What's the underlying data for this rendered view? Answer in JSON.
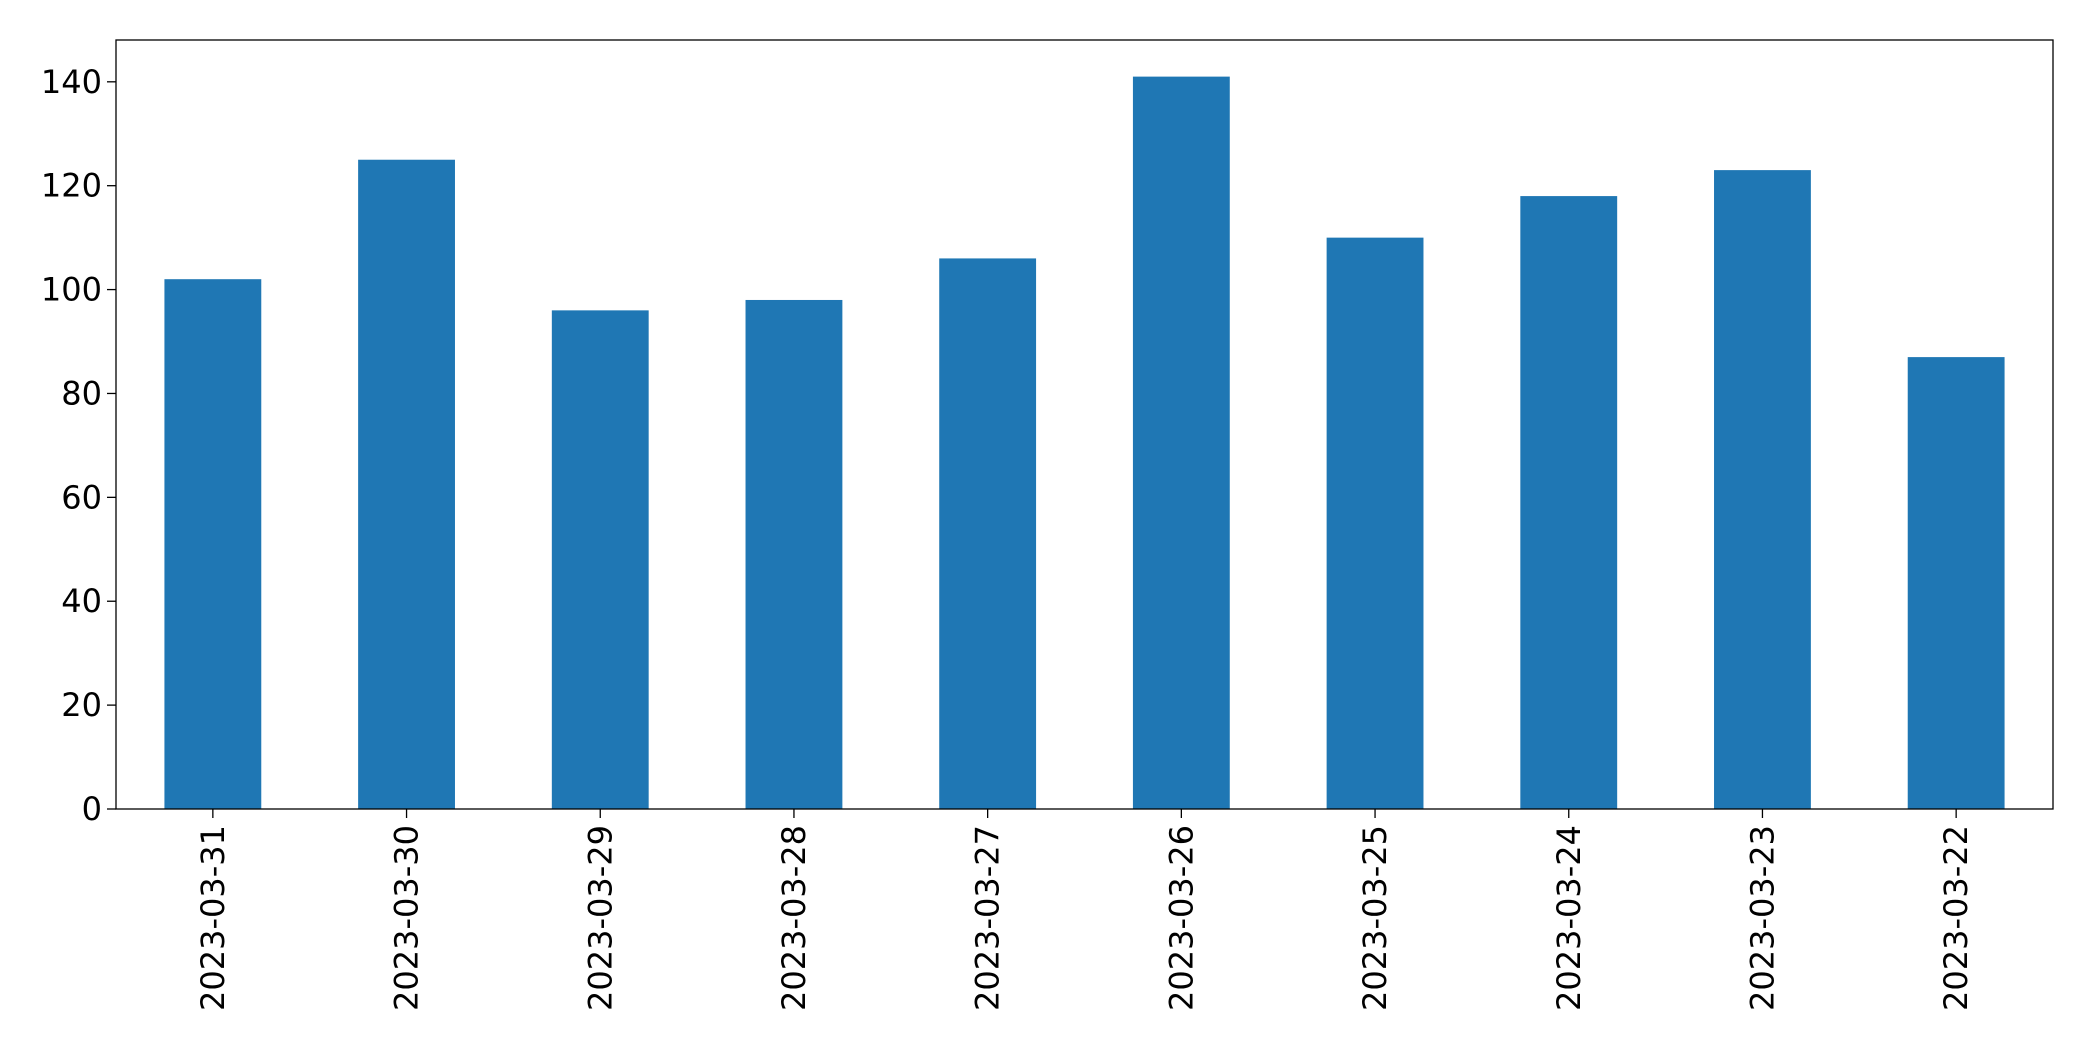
{
  "chart_data": {
    "type": "bar",
    "categories": [
      "2023-03-31",
      "2023-03-30",
      "2023-03-29",
      "2023-03-28",
      "2023-03-27",
      "2023-03-26",
      "2023-03-25",
      "2023-03-24",
      "2023-03-23",
      "2023-03-22"
    ],
    "values": [
      102,
      125,
      96,
      98,
      106,
      141,
      110,
      118,
      123,
      87
    ],
    "color": "#1f77b4",
    "ylim": [
      0,
      148.05
    ],
    "yticks": [
      0,
      20,
      40,
      60,
      80,
      100,
      120,
      140
    ],
    "grid": false
  }
}
